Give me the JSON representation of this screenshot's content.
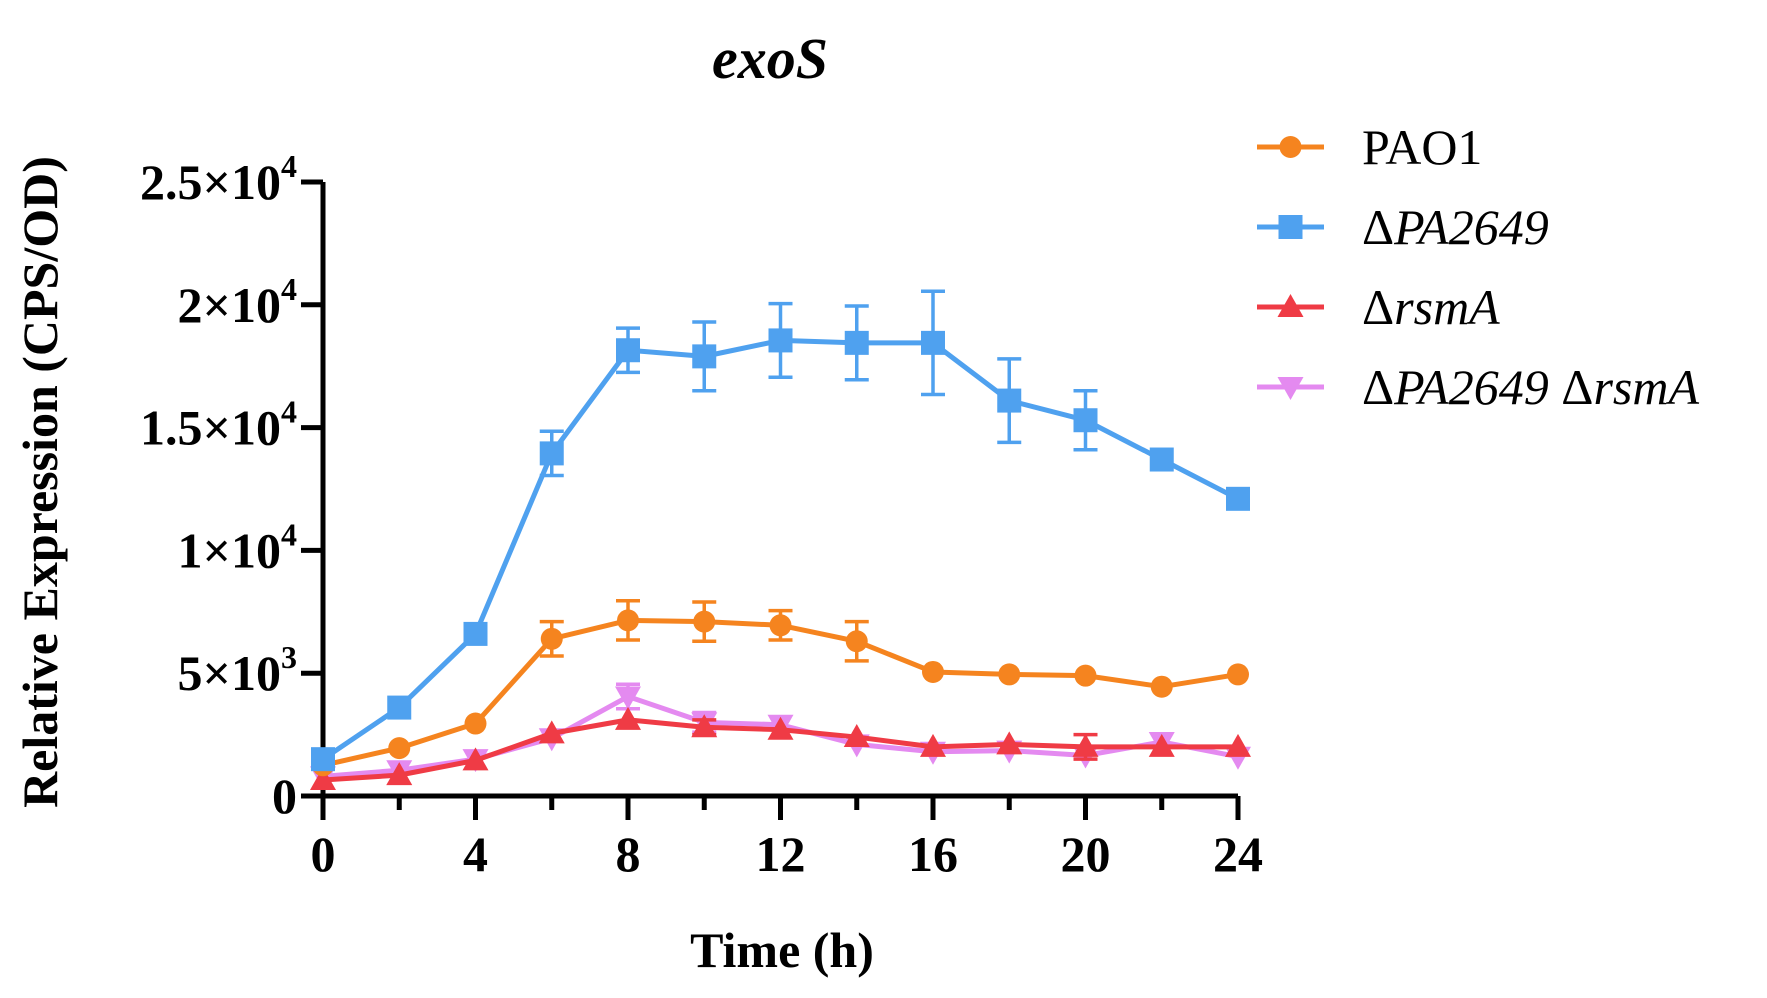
{
  "chart_data": {
    "type": "line",
    "title": "exoS",
    "xlabel": "Time (h)",
    "ylabel": "Relative Expression (CPS/OD)",
    "xlim": [
      0,
      24
    ],
    "ylim": [
      0,
      25000
    ],
    "xticks": [
      0,
      4,
      8,
      12,
      16,
      20,
      24
    ],
    "xtick_labels": [
      "0",
      "4",
      "8",
      "12",
      "16",
      "20",
      "24"
    ],
    "yticks": [
      0,
      5000,
      10000,
      15000,
      20000,
      25000
    ],
    "ytick_labels": [
      {
        "mant": "0",
        "exp": ""
      },
      {
        "mant": "5×10",
        "exp": "3"
      },
      {
        "mant": "1×10",
        "exp": "4"
      },
      {
        "mant": "1.5×10",
        "exp": "4"
      },
      {
        "mant": "2×10",
        "exp": "4"
      },
      {
        "mant": "2.5×10",
        "exp": "4"
      }
    ],
    "x": [
      0,
      2,
      4,
      6,
      8,
      10,
      12,
      14,
      16,
      18,
      20,
      22,
      24
    ],
    "grid": false,
    "legend_position": "top-right",
    "series": [
      {
        "name": "PAO1",
        "name_parts": [
          {
            "text": "PAO1",
            "italic": false
          }
        ],
        "color": "#F5841F",
        "marker": "circle",
        "values": [
          1250,
          1950,
          2950,
          6400,
          7150,
          7100,
          6950,
          6300,
          5050,
          4950,
          4900,
          4450,
          4950
        ],
        "errors": [
          0,
          0,
          0,
          700,
          800,
          800,
          600,
          800,
          0,
          0,
          0,
          0,
          0
        ]
      },
      {
        "name": "ΔPA2649",
        "name_parts": [
          {
            "text": "Δ",
            "italic": false
          },
          {
            "text": "PA2649",
            "italic": true
          }
        ],
        "color": "#4FA1EF",
        "marker": "square",
        "values": [
          1500,
          3600,
          6600,
          13950,
          18150,
          17900,
          18550,
          18450,
          18450,
          16100,
          15300,
          13700,
          12100
        ],
        "errors": [
          0,
          0,
          0,
          900,
          900,
          1400,
          1500,
          1500,
          2100,
          1700,
          1200,
          0,
          0
        ]
      },
      {
        "name": "ΔrsmA",
        "name_parts": [
          {
            "text": "Δ",
            "italic": false
          },
          {
            "text": "rsmA",
            "italic": true
          }
        ],
        "color": "#EF3B45",
        "marker": "triangle-up",
        "values": [
          650,
          850,
          1450,
          2550,
          3100,
          2800,
          2700,
          2400,
          2000,
          2100,
          2000,
          2000,
          2000
        ],
        "errors": [
          0,
          0,
          0,
          0,
          0,
          300,
          0,
          0,
          0,
          0,
          500,
          0,
          0
        ]
      },
      {
        "name": "ΔPA2649 ΔrsmA",
        "name_parts": [
          {
            "text": "Δ",
            "italic": false
          },
          {
            "text": "PA2649",
            "italic": true
          },
          {
            "text": " Δ",
            "italic": false
          },
          {
            "text": "rsmA",
            "italic": true
          }
        ],
        "color": "#E48AF0",
        "marker": "triangle-down",
        "values": [
          800,
          1050,
          1500,
          2350,
          4050,
          3000,
          2900,
          2100,
          1800,
          1850,
          1650,
          2200,
          1600
        ],
        "errors": [
          0,
          0,
          0,
          0,
          500,
          400,
          0,
          0,
          0,
          0,
          0,
          0,
          0
        ]
      }
    ]
  }
}
